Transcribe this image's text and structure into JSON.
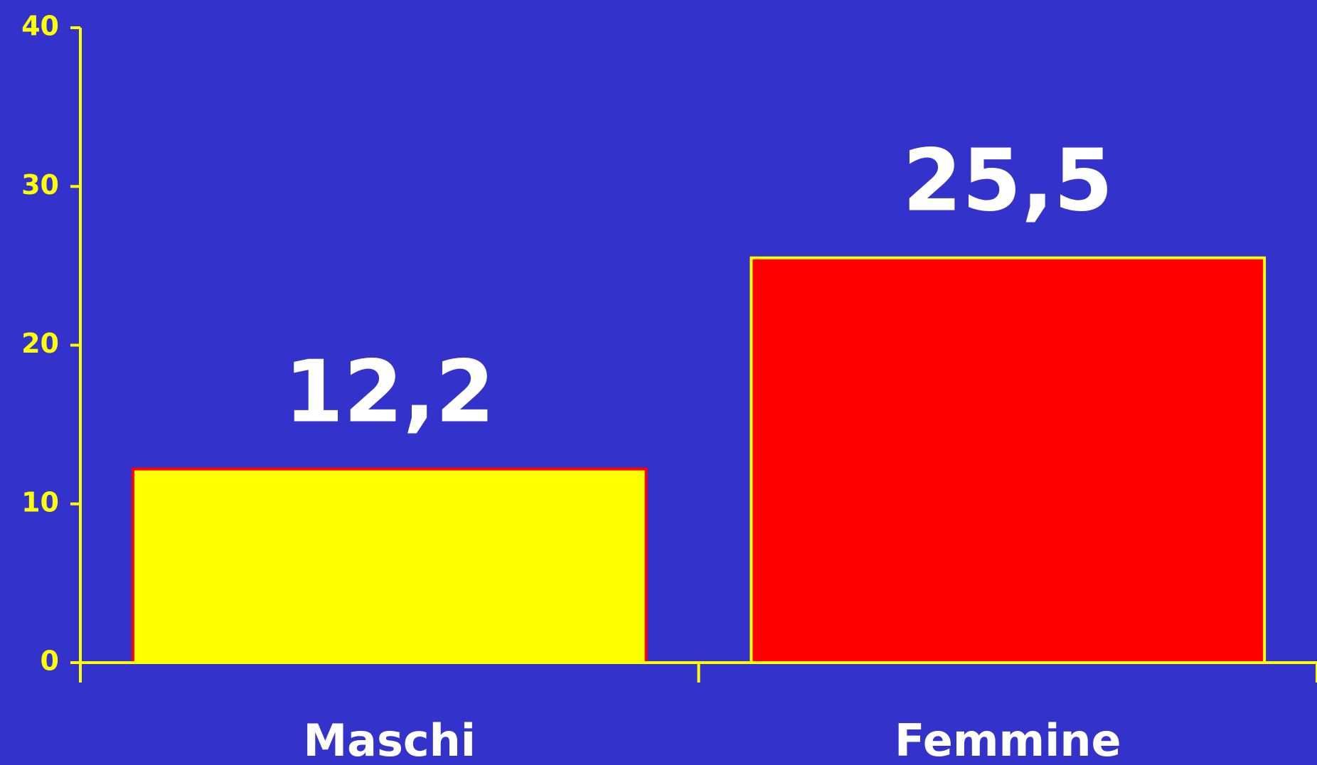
{
  "chart_data": {
    "type": "bar",
    "categories": [
      "Maschi",
      "Femmine"
    ],
    "values": [
      12.2,
      25.5
    ],
    "value_labels": [
      "12,2",
      "25,5"
    ],
    "colors": [
      "#ffff00",
      "#ff0000"
    ],
    "edge_colors": [
      "#ff0000",
      "#ffff00"
    ],
    "background": "#3333cc",
    "axis_color": "#ffff00",
    "ylim": [
      0,
      40
    ],
    "yticks": [
      0,
      10,
      20,
      30,
      40
    ],
    "grid": false
  }
}
